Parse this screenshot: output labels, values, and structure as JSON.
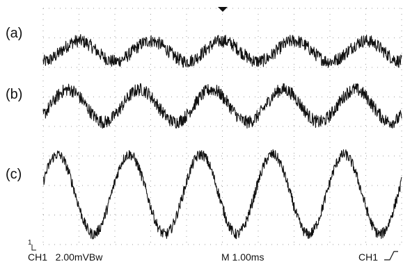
{
  "chart_data": {
    "type": "line",
    "title": "",
    "xlabel": "",
    "ylabel": "",
    "grid": "dotted, 10 x 8 divisions",
    "series": [
      {
        "name": "(a)",
        "cycles": 5.0,
        "amplitude_div": 0.35,
        "noise_div": 0.22,
        "center_div": 1.45,
        "phase": 0.0
      },
      {
        "name": "(b)",
        "cycles": 5.0,
        "amplitude_div": 0.55,
        "noise_div": 0.22,
        "center_div": 3.3,
        "phase": 0.15
      },
      {
        "name": "(c)",
        "cycles": 5.0,
        "amplitude_div": 1.35,
        "noise_div": 0.18,
        "center_div": 6.3,
        "phase": 0.3
      }
    ],
    "colors": {
      "trace": "#111111",
      "grid": "#9a9a9a",
      "background": "#ffffff"
    }
  },
  "scope": {
    "channel_marker": "1",
    "ch1_setting": "CH1   2.00mVBw",
    "timebase": "M 1.00ms",
    "trigger": "CH1",
    "trigger_icon": "rising-edge-icon"
  }
}
